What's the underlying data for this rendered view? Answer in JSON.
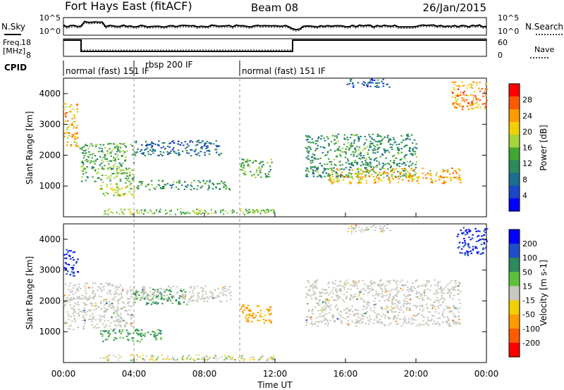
{
  "header": {
    "station": "Fort Hays East (fitACF)",
    "beam": "Beam 08",
    "date": "26/Jan/2015"
  },
  "strip_labels": {
    "nsky": "N.Sky",
    "nsearch": "N.Search",
    "freq": "Freq.",
    "freq_unit": "[MHz]",
    "nave": "Nave",
    "cpid": "CPID",
    "nsky_ticks": [
      "10^5",
      "10^0"
    ],
    "nsearch_ticks": [
      "10^5",
      "10^0"
    ],
    "freq_ticks": [
      "18",
      "8"
    ],
    "nave_ticks": [
      "60",
      "0"
    ]
  },
  "cpid_segments": [
    {
      "label": "normal (fast) 151 IF",
      "start_hour": 0
    },
    {
      "label": "rbsp 200 IF",
      "start_hour": 4.0
    },
    {
      "label": "normal (fast) 151 IF",
      "start_hour": 10.0
    }
  ],
  "chart_data": [
    {
      "type": "heatmap",
      "name": "power",
      "ylabel": "Slant Range [km]",
      "colorbar_label": "Power [dB]",
      "colorbar_ticks": [
        "28",
        "24",
        "20",
        "16",
        "12",
        "8",
        "4"
      ],
      "colorbar_colors": [
        "#ff0000",
        "#ff5a00",
        "#ff9a00",
        "#f2d000",
        "#a6d43b",
        "#3fa832",
        "#2c8a5e",
        "#1b6f8f",
        "#1a46c8",
        "#0000ff"
      ],
      "y_ticks": [
        "4000",
        "3000",
        "2000",
        "1000"
      ],
      "ylim": [
        0,
        4500
      ],
      "xlim": [
        0,
        24
      ],
      "echo_regions": [
        {
          "t0": 0.0,
          "t1": 0.8,
          "r0": 2300,
          "r1": 3700,
          "value": 22
        },
        {
          "t0": 0.9,
          "t1": 4.0,
          "r0": 1100,
          "r1": 2400,
          "value": 14
        },
        {
          "t0": 2.0,
          "t1": 4.0,
          "r0": 700,
          "r1": 1100,
          "value": 18
        },
        {
          "t0": 4.0,
          "t1": 9.0,
          "r0": 2000,
          "r1": 2500,
          "value": 8
        },
        {
          "t0": 4.0,
          "t1": 9.5,
          "r0": 900,
          "r1": 1200,
          "value": 12
        },
        {
          "t0": 10.0,
          "t1": 11.8,
          "r0": 1300,
          "r1": 1900,
          "value": 14
        },
        {
          "t0": 13.7,
          "t1": 20.0,
          "r0": 1300,
          "r1": 2700,
          "value": 12
        },
        {
          "t0": 15.0,
          "t1": 22.5,
          "r0": 1100,
          "r1": 1600,
          "value": 22
        },
        {
          "t0": 22.0,
          "t1": 24.0,
          "r0": 3500,
          "r1": 4400,
          "value": 24
        },
        {
          "t0": 16.0,
          "t1": 18.5,
          "r0": 4200,
          "r1": 4500,
          "value": 8
        }
      ]
    },
    {
      "type": "heatmap",
      "name": "velocity",
      "ylabel": "Slant Range [km]",
      "colorbar_label": "Velocity [m s-1]",
      "colorbar_ticks": [
        "200",
        "100",
        "50",
        "15",
        "-15",
        "-50",
        "-100",
        "-200"
      ],
      "colorbar_colors": [
        "#0000ff",
        "#1f4fc8",
        "#2c8a5e",
        "#5cc23a",
        "#c8c8c0",
        "#f2d000",
        "#ff9a00",
        "#ff5a00",
        "#ff0000"
      ],
      "y_ticks": [
        "4000",
        "3000",
        "2000",
        "1000"
      ],
      "ylim": [
        0,
        4500
      ],
      "xlim": [
        0,
        24
      ],
      "xlabel": "Time UT",
      "x_ticks": [
        "00:00",
        "04:00",
        "08:00",
        "12:00",
        "16:00",
        "20:00",
        "00:00"
      ],
      "echo_regions": [
        {
          "t0": 0.0,
          "t1": 0.8,
          "r0": 2800,
          "r1": 3700,
          "value": 200
        },
        {
          "t0": 0.0,
          "t1": 4.0,
          "r0": 1100,
          "r1": 2600,
          "value": 0
        },
        {
          "t0": 2.0,
          "t1": 5.5,
          "r0": 700,
          "r1": 1100,
          "value": 60
        },
        {
          "t0": 4.0,
          "t1": 7.0,
          "r0": 1900,
          "r1": 2400,
          "value": 60
        },
        {
          "t0": 4.0,
          "t1": 9.5,
          "r0": 2000,
          "r1": 2500,
          "value": 0
        },
        {
          "t0": 10.0,
          "t1": 11.8,
          "r0": 1300,
          "r1": 1900,
          "value": -70
        },
        {
          "t0": 13.7,
          "t1": 22.5,
          "r0": 1200,
          "r1": 2700,
          "value": 0
        },
        {
          "t0": 16.0,
          "t1": 18.5,
          "r0": 4200,
          "r1": 4500,
          "value": 0
        },
        {
          "t0": 22.3,
          "t1": 24.0,
          "r0": 3500,
          "r1": 4400,
          "value": 200
        }
      ]
    }
  ]
}
